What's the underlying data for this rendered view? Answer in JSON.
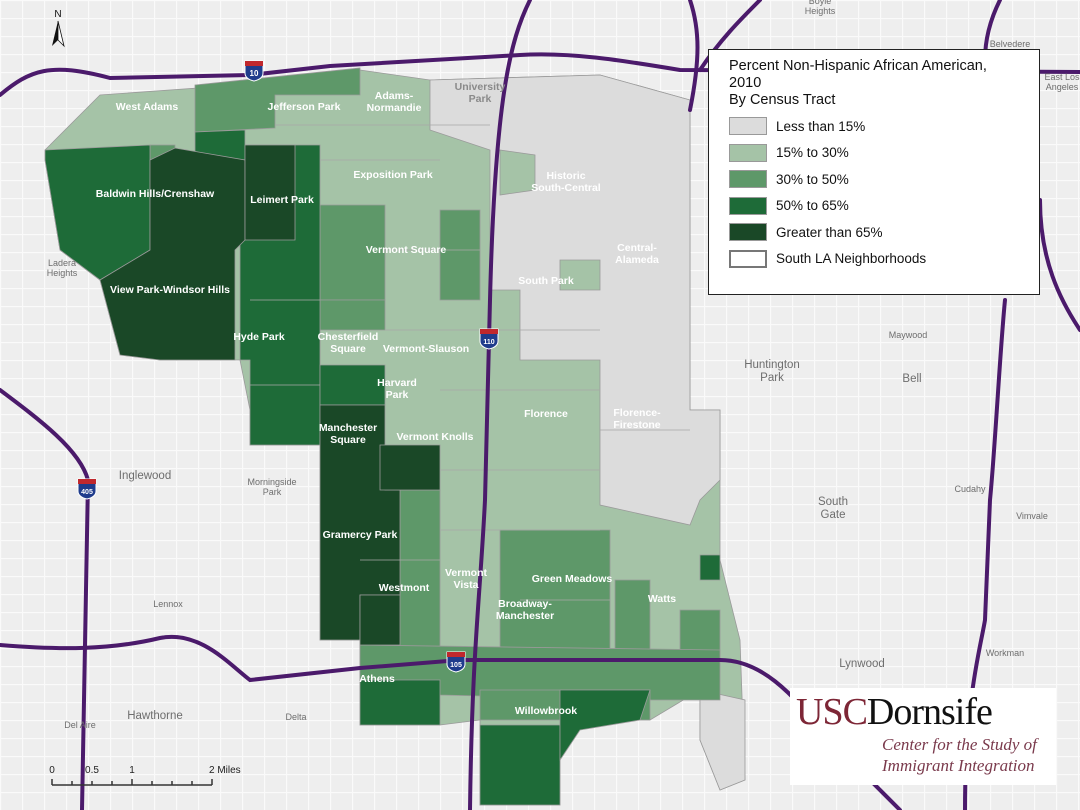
{
  "map": {
    "north_label": "N",
    "legend": {
      "title_line1": "Percent Non-Hispanic African American,",
      "title_line2": "2010",
      "title_line3": "By Census Tract",
      "classes": [
        {
          "label": "Less than 15%",
          "color": "#dcdcdc"
        },
        {
          "label": "15% to 30%",
          "color": "#a5c3a7"
        },
        {
          "label": "30% to 50%",
          "color": "#5e9869"
        },
        {
          "label": "50% to 65%",
          "color": "#1e6b38"
        },
        {
          "label": "Greater than 65%",
          "color": "#1a4827"
        }
      ],
      "boundary_label": "South LA Neighborhoods"
    },
    "neighborhoods": [
      {
        "name": "West Adams"
      },
      {
        "name": "Jefferson Park"
      },
      {
        "name": "Adams-\nNormandie",
        "l1": "Adams-",
        "l2": "Normandie"
      },
      {
        "name": "University Park",
        "l1": "University",
        "l2": "Park"
      },
      {
        "name": "Exposition Park"
      },
      {
        "name": "Historic South-Central",
        "l1": "Historic",
        "l2": "South-Central"
      },
      {
        "name": "Baldwin Hills/Crenshaw"
      },
      {
        "name": "Leimert Park"
      },
      {
        "name": "Vermont Square"
      },
      {
        "name": "Central-Alameda",
        "l1": "Central-",
        "l2": "Alameda"
      },
      {
        "name": "South Park"
      },
      {
        "name": "View Park-Windsor Hills"
      },
      {
        "name": "Hyde Park"
      },
      {
        "name": "Chesterfield Square",
        "l1": "Chesterfield",
        "l2": "Square"
      },
      {
        "name": "Vermont-Slauson"
      },
      {
        "name": "Harvard Park",
        "l1": "Harvard",
        "l2": "Park"
      },
      {
        "name": "Florence"
      },
      {
        "name": "Florence-Firestone",
        "l1": "Florence-",
        "l2": "Firestone"
      },
      {
        "name": "Manchester Square",
        "l1": "Manchester",
        "l2": "Square"
      },
      {
        "name": "Vermont Knolls"
      },
      {
        "name": "Gramercy Park"
      },
      {
        "name": "Vermont Vista",
        "l1": "Vermont",
        "l2": "Vista"
      },
      {
        "name": "Green Meadows"
      },
      {
        "name": "Westmont"
      },
      {
        "name": "Broadway-Manchester",
        "l1": "Broadway-",
        "l2": "Manchester"
      },
      {
        "name": "Watts"
      },
      {
        "name": "Athens"
      },
      {
        "name": "Willowbrook"
      }
    ],
    "places": [
      {
        "l1": "Boyle",
        "l2": "Heights"
      },
      {
        "l1": "Belvedere"
      },
      {
        "l1": "East Los",
        "l2": "Angeles"
      },
      {
        "l1": "Ladera",
        "l2": "Heights"
      },
      {
        "l1": "Inglewood"
      },
      {
        "l1": "Morningside",
        "l2": "Park"
      },
      {
        "l1": "Lennox"
      },
      {
        "l1": "Hawthorne"
      },
      {
        "l1": "Del Aire"
      },
      {
        "l1": "Delta"
      },
      {
        "l1": "Maywood"
      },
      {
        "l1": "Huntington",
        "l2": "Park"
      },
      {
        "l1": "Bell"
      },
      {
        "l1": "South",
        "l2": "Gate"
      },
      {
        "l1": "Cudahy"
      },
      {
        "l1": "Vimvale"
      },
      {
        "l1": "Lynwood"
      },
      {
        "l1": "Workman"
      }
    ],
    "highways": [
      "10",
      "110",
      "105",
      "405"
    ],
    "highway_color": "#4b1a6b",
    "scale_bar": {
      "ticks": [
        "0",
        "0.5",
        "1",
        "2 Miles"
      ]
    },
    "logo": {
      "usc": "USC",
      "dornsife": "Dornsife",
      "line1": "Center for the Study of",
      "line2": "Immigrant Integration"
    }
  }
}
